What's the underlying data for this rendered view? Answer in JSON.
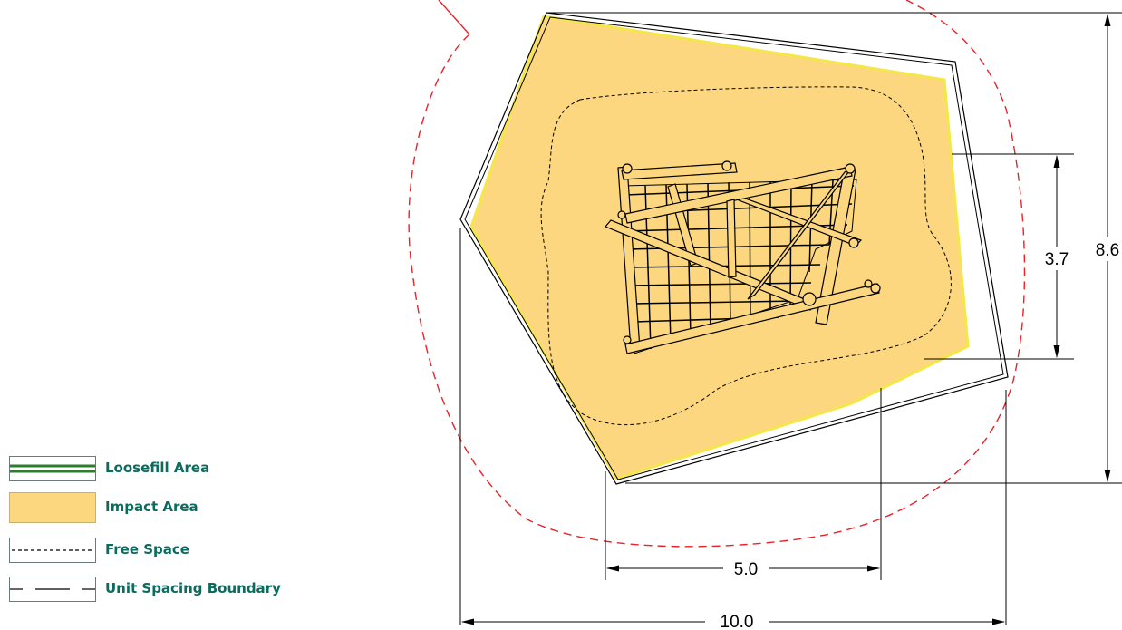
{
  "dimensions": {
    "width": "10.0",
    "inner_width": "5.0",
    "height": "8.6",
    "inner_height": "3.7"
  },
  "legend": {
    "items": [
      {
        "label": "Loosefill Area",
        "pattern": "double-line",
        "color": "#2e7d2e"
      },
      {
        "label": "Impact Area",
        "pattern": "fill",
        "color": "#fcd77f"
      },
      {
        "label": "Free Space",
        "pattern": "short-dash",
        "color": "#000000"
      },
      {
        "label": "Unit Spacing Boundary",
        "pattern": "long-dash",
        "color": "#000000"
      }
    ]
  },
  "colors": {
    "impact_fill": "#fcd77f",
    "impact_edge": "#f5e64a",
    "unit_spacing_dash": "#e8232a",
    "legend_text": "#0b6b5e"
  }
}
